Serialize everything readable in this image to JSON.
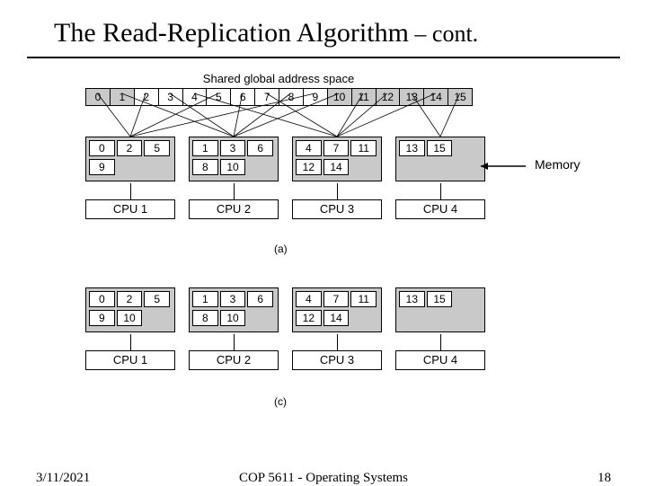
{
  "title_main": "The Read-Replication Algorithm",
  "title_cont": " – cont.",
  "shared_label": "Shared global address space",
  "global_cells": [
    {
      "v": "0",
      "shaded": true
    },
    {
      "v": "1",
      "shaded": true
    },
    {
      "v": "2",
      "shaded": false
    },
    {
      "v": "3",
      "shaded": false
    },
    {
      "v": "4",
      "shaded": false
    },
    {
      "v": "5",
      "shaded": false
    },
    {
      "v": "6",
      "shaded": false
    },
    {
      "v": "7",
      "shaded": false
    },
    {
      "v": "8",
      "shaded": false
    },
    {
      "v": "9",
      "shaded": false
    },
    {
      "v": "10",
      "shaded": true
    },
    {
      "v": "11",
      "shaded": true
    },
    {
      "v": "12",
      "shaded": true
    },
    {
      "v": "13",
      "shaded": true
    },
    {
      "v": "14",
      "shaded": true
    },
    {
      "v": "15",
      "shaded": true
    }
  ],
  "memory_label": "Memory",
  "diagram_a": {
    "label": "(a)",
    "nodes": [
      {
        "cpu": "CPU 1",
        "rows": [
          [
            "0",
            "2",
            "5"
          ],
          [
            "9",
            "",
            ""
          ]
        ]
      },
      {
        "cpu": "CPU 2",
        "rows": [
          [
            "1",
            "3",
            "6"
          ],
          [
            "8",
            "10",
            ""
          ]
        ]
      },
      {
        "cpu": "CPU 3",
        "rows": [
          [
            "4",
            "7",
            "11"
          ],
          [
            "12",
            "14",
            ""
          ]
        ]
      },
      {
        "cpu": "CPU 4",
        "rows": [
          [
            "13",
            "15",
            ""
          ],
          [
            "",
            "",
            ""
          ]
        ]
      }
    ]
  },
  "diagram_c": {
    "label": "(c)",
    "nodes": [
      {
        "cpu": "CPU 1",
        "rows": [
          [
            "0",
            "2",
            "5"
          ],
          [
            "9",
            "10",
            ""
          ]
        ]
      },
      {
        "cpu": "CPU 2",
        "rows": [
          [
            "1",
            "3",
            "6"
          ],
          [
            "8",
            "10",
            ""
          ]
        ]
      },
      {
        "cpu": "CPU 3",
        "rows": [
          [
            "4",
            "7",
            "11"
          ],
          [
            "12",
            "14",
            ""
          ]
        ]
      },
      {
        "cpu": "CPU 4",
        "rows": [
          [
            "13",
            "15",
            ""
          ],
          [
            "",
            "",
            ""
          ]
        ]
      }
    ]
  },
  "footer": {
    "date": "3/11/2021",
    "course": "COP 5611 - Operating Systems",
    "page": "18"
  }
}
